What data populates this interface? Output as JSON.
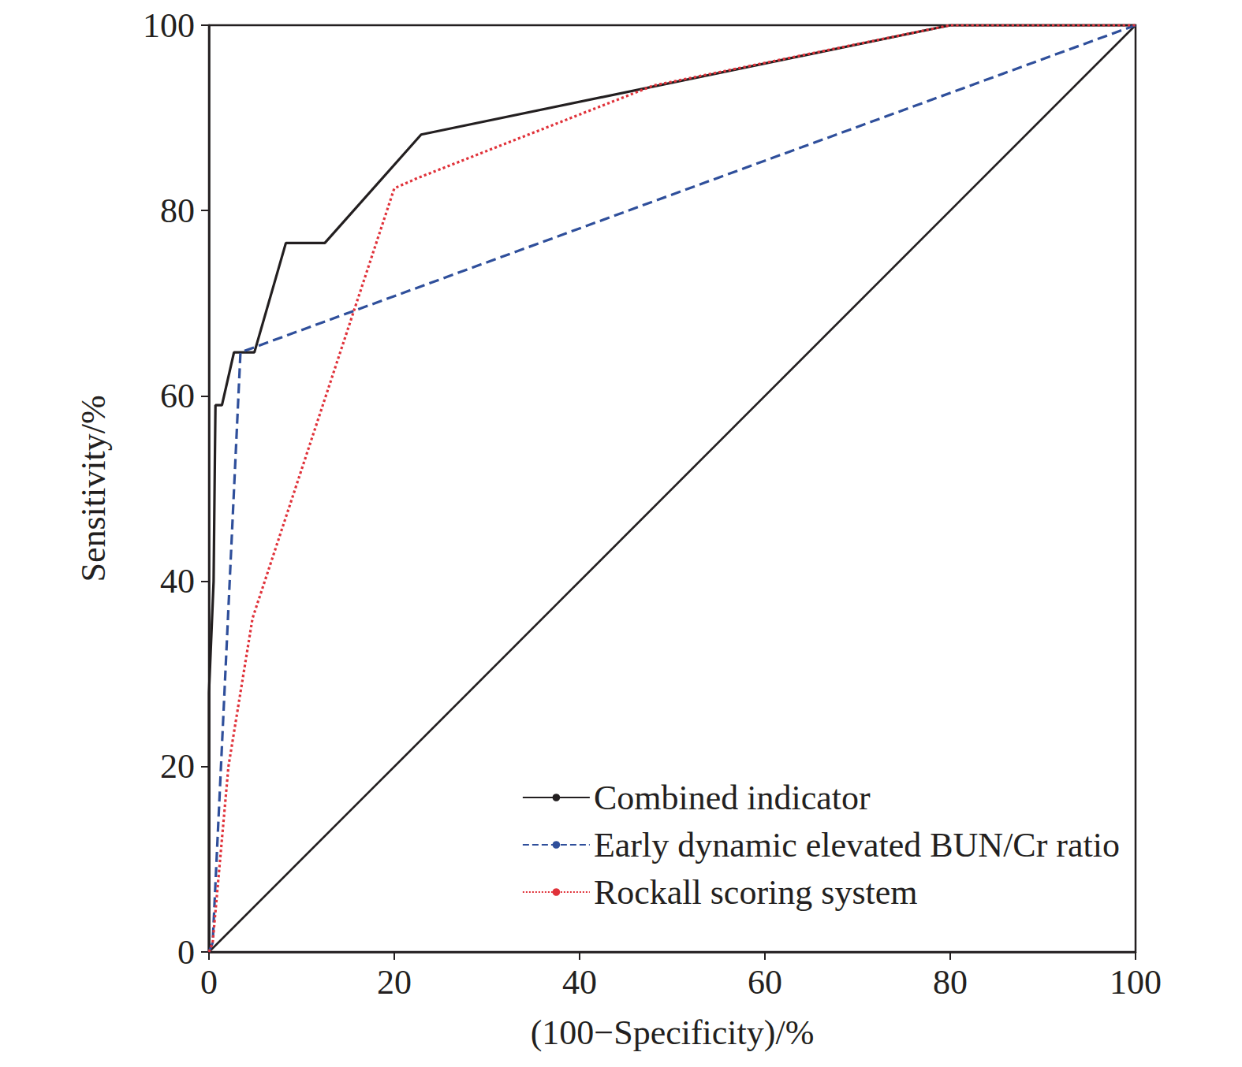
{
  "chart_data": {
    "type": "line",
    "x_label": "(100−Specificity)/%",
    "y_label": "Sensitivity/%",
    "xlim": [
      0,
      100
    ],
    "ylim": [
      0,
      100
    ],
    "xticks": [
      0,
      20,
      40,
      60,
      80,
      100
    ],
    "yticks": [
      0,
      20,
      40,
      60,
      80,
      100
    ],
    "grid": false,
    "legend": "lower right",
    "series": [
      {
        "name": "Combined indicator",
        "color": "#231f20",
        "line_style": "solid",
        "x": [
          0,
          0,
          0.5,
          0.7,
          1.4,
          2.7,
          4.9,
          8.3,
          12.5,
          22.9,
          80,
          100
        ],
        "values": [
          0,
          28,
          40,
          59,
          59,
          64.7,
          64.7,
          76.5,
          76.5,
          88.2,
          100,
          100
        ]
      },
      {
        "name": "Early dynamic elevated BUN/Cr ratio",
        "color": "#2f4f9b",
        "line_style": "dashed",
        "x": [
          0,
          0.4,
          3.4,
          100
        ],
        "values": [
          0,
          1,
          64.7,
          100
        ]
      },
      {
        "name": "Rockall scoring system",
        "color": "#e0323a",
        "line_style": "dotted",
        "x": [
          0,
          0.4,
          2.1,
          4.7,
          20,
          22.5,
          48,
          80,
          100
        ],
        "values": [
          0,
          1,
          20,
          36,
          82.4,
          83.5,
          93.5,
          100,
          100
        ]
      },
      {
        "color": "#231f20",
        "line_style": "solid",
        "x": [
          0,
          100
        ],
        "values": [
          0,
          100
        ]
      }
    ]
  }
}
